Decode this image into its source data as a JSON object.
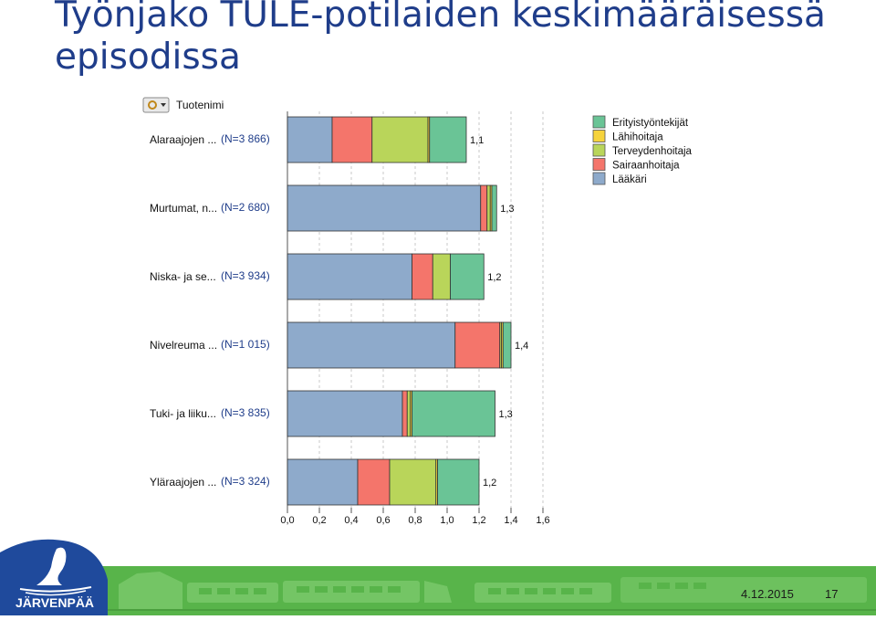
{
  "slide": {
    "title": "Työnjako TULE-potilaiden keskimääräisessä episodissa",
    "date": "4.12.2015",
    "page": "17",
    "logo_text": "JÄRVENPÄÄ"
  },
  "chart_data": {
    "type": "bar",
    "orientation": "horizontal",
    "stacked": true,
    "dimension_header": "Tuotenimi",
    "categories": [
      "Alaraajojen ...",
      "Murtumat, n...",
      "Niska- ja se...",
      "Nivelreuma ...",
      "Tuki- ja liiku...",
      "Yläraajojen ..."
    ],
    "n_labels": [
      "(N=3 866)",
      "(N=2 680)",
      "(N=3 934)",
      "(N=1 015)",
      "(N=3 835)",
      "(N=3 324)"
    ],
    "totals": [
      "1,1",
      "1,3",
      "1,2",
      "1,4",
      "1,3",
      "1,2"
    ],
    "series": [
      {
        "name": "Lääkäri",
        "color": "#8eaacb",
        "values": [
          0.28,
          1.21,
          0.78,
          1.05,
          0.72,
          0.44
        ]
      },
      {
        "name": "Sairaanhoitaja",
        "color": "#f4756b",
        "values": [
          0.25,
          0.04,
          0.13,
          0.28,
          0.03,
          0.2
        ]
      },
      {
        "name": "Terveydenhoitaja",
        "color": "#b9d55a",
        "values": [
          0.35,
          0.02,
          0.11,
          0.01,
          0.02,
          0.29
        ]
      },
      {
        "name": "Lähihoitaja",
        "color": "#f6d33c",
        "values": [
          0.01,
          0.01,
          0.0,
          0.01,
          0.01,
          0.01
        ]
      },
      {
        "name": "Erityistyöntekijät",
        "color": "#6ac496",
        "values": [
          0.23,
          0.03,
          0.21,
          0.05,
          0.52,
          0.26
        ]
      }
    ],
    "legend_order": [
      "Erityistyöntekijät",
      "Lähihoitaja",
      "Terveydenhoitaja",
      "Sairaanhoitaja",
      "Lääkäri"
    ],
    "xlim": [
      0,
      1.6
    ],
    "xticks": [
      "0,0",
      "0,2",
      "0,4",
      "0,6",
      "0,8",
      "1,0",
      "1,2",
      "1,4",
      "1,6"
    ],
    "grid": true,
    "legend_position": "top-right"
  }
}
